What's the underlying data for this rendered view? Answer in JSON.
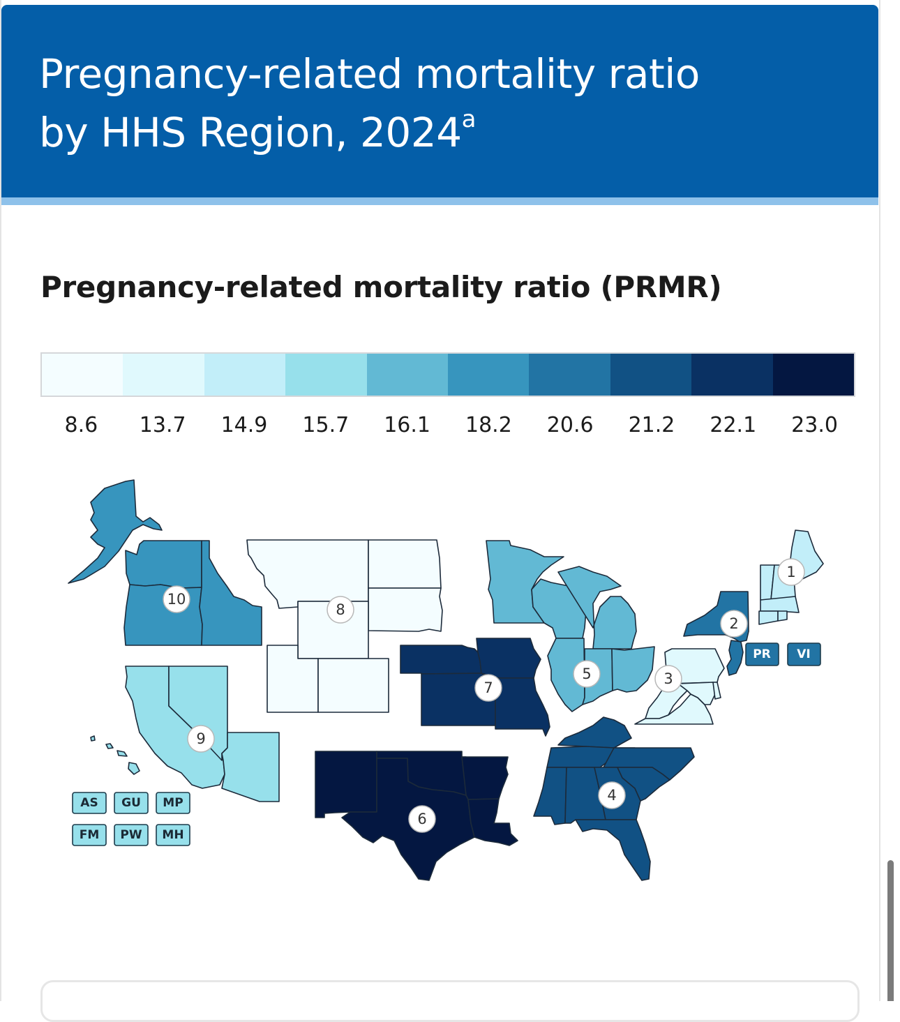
{
  "header": {
    "title": "Pregnancy-related mortality ratio by HHS Region, 2024",
    "title_line1": "Pregnancy-related mortality ratio",
    "title_line2": "by HHS Region, 2024",
    "footnote_marker": "a"
  },
  "subtitle": "Pregnancy-related mortality ratio (PRMR)",
  "colors": {
    "header_bg": "#045ea8",
    "header_stripe": "#8ec1ea",
    "text": "#1b1b1b"
  },
  "chart_data": {
    "type": "choropleth",
    "title": "Pregnancy-related mortality ratio by HHS Region, 2024",
    "legend_title": "Pregnancy-related mortality ratio (PRMR)",
    "legend_placement": "top",
    "legend_bins": [
      {
        "value": "8.6",
        "color": "#f4fdff"
      },
      {
        "value": "13.7",
        "color": "#e0f9fd"
      },
      {
        "value": "14.9",
        "color": "#c2eef9"
      },
      {
        "value": "15.7",
        "color": "#97e0eb"
      },
      {
        "value": "16.1",
        "color": "#62b9d4"
      },
      {
        "value": "18.2",
        "color": "#3795be"
      },
      {
        "value": "20.6",
        "color": "#2274a4"
      },
      {
        "value": "21.2",
        "color": "#115184"
      },
      {
        "value": "22.1",
        "color": "#0a3163"
      },
      {
        "value": "23.0",
        "color": "#041741"
      }
    ],
    "regions": [
      {
        "id": "1",
        "label": "1",
        "prmr": 14.9,
        "states": [
          "ME",
          "NH",
          "VT",
          "MA",
          "RI",
          "CT"
        ]
      },
      {
        "id": "2",
        "label": "2",
        "prmr": 20.6,
        "states": [
          "NY",
          "NJ"
        ],
        "territories": [
          "PR",
          "VI"
        ]
      },
      {
        "id": "3",
        "label": "3",
        "prmr": 13.7,
        "states": [
          "PA",
          "DE",
          "MD",
          "VA",
          "WV",
          "DC"
        ]
      },
      {
        "id": "4",
        "label": "4",
        "prmr": 21.2,
        "states": [
          "KY",
          "TN",
          "NC",
          "SC",
          "GA",
          "FL",
          "AL",
          "MS"
        ]
      },
      {
        "id": "5",
        "label": "5",
        "prmr": 16.1,
        "states": [
          "MN",
          "WI",
          "MI",
          "IL",
          "IN",
          "OH"
        ]
      },
      {
        "id": "6",
        "label": "6",
        "prmr": 23.0,
        "states": [
          "NM",
          "TX",
          "OK",
          "AR",
          "LA"
        ]
      },
      {
        "id": "7",
        "label": "7",
        "prmr": 22.1,
        "states": [
          "NE",
          "IA",
          "KS",
          "MO"
        ]
      },
      {
        "id": "8",
        "label": "8",
        "prmr": 8.6,
        "states": [
          "MT",
          "ND",
          "SD",
          "WY",
          "UT",
          "CO"
        ]
      },
      {
        "id": "9",
        "label": "9",
        "prmr": 15.7,
        "states": [
          "CA",
          "NV",
          "AZ",
          "HI"
        ],
        "territories": [
          "AS",
          "GU",
          "MP",
          "FM",
          "PW",
          "MH"
        ]
      },
      {
        "id": "10",
        "label": "10",
        "prmr": 18.2,
        "states": [
          "WA",
          "OR",
          "ID",
          "AK"
        ]
      }
    ]
  }
}
